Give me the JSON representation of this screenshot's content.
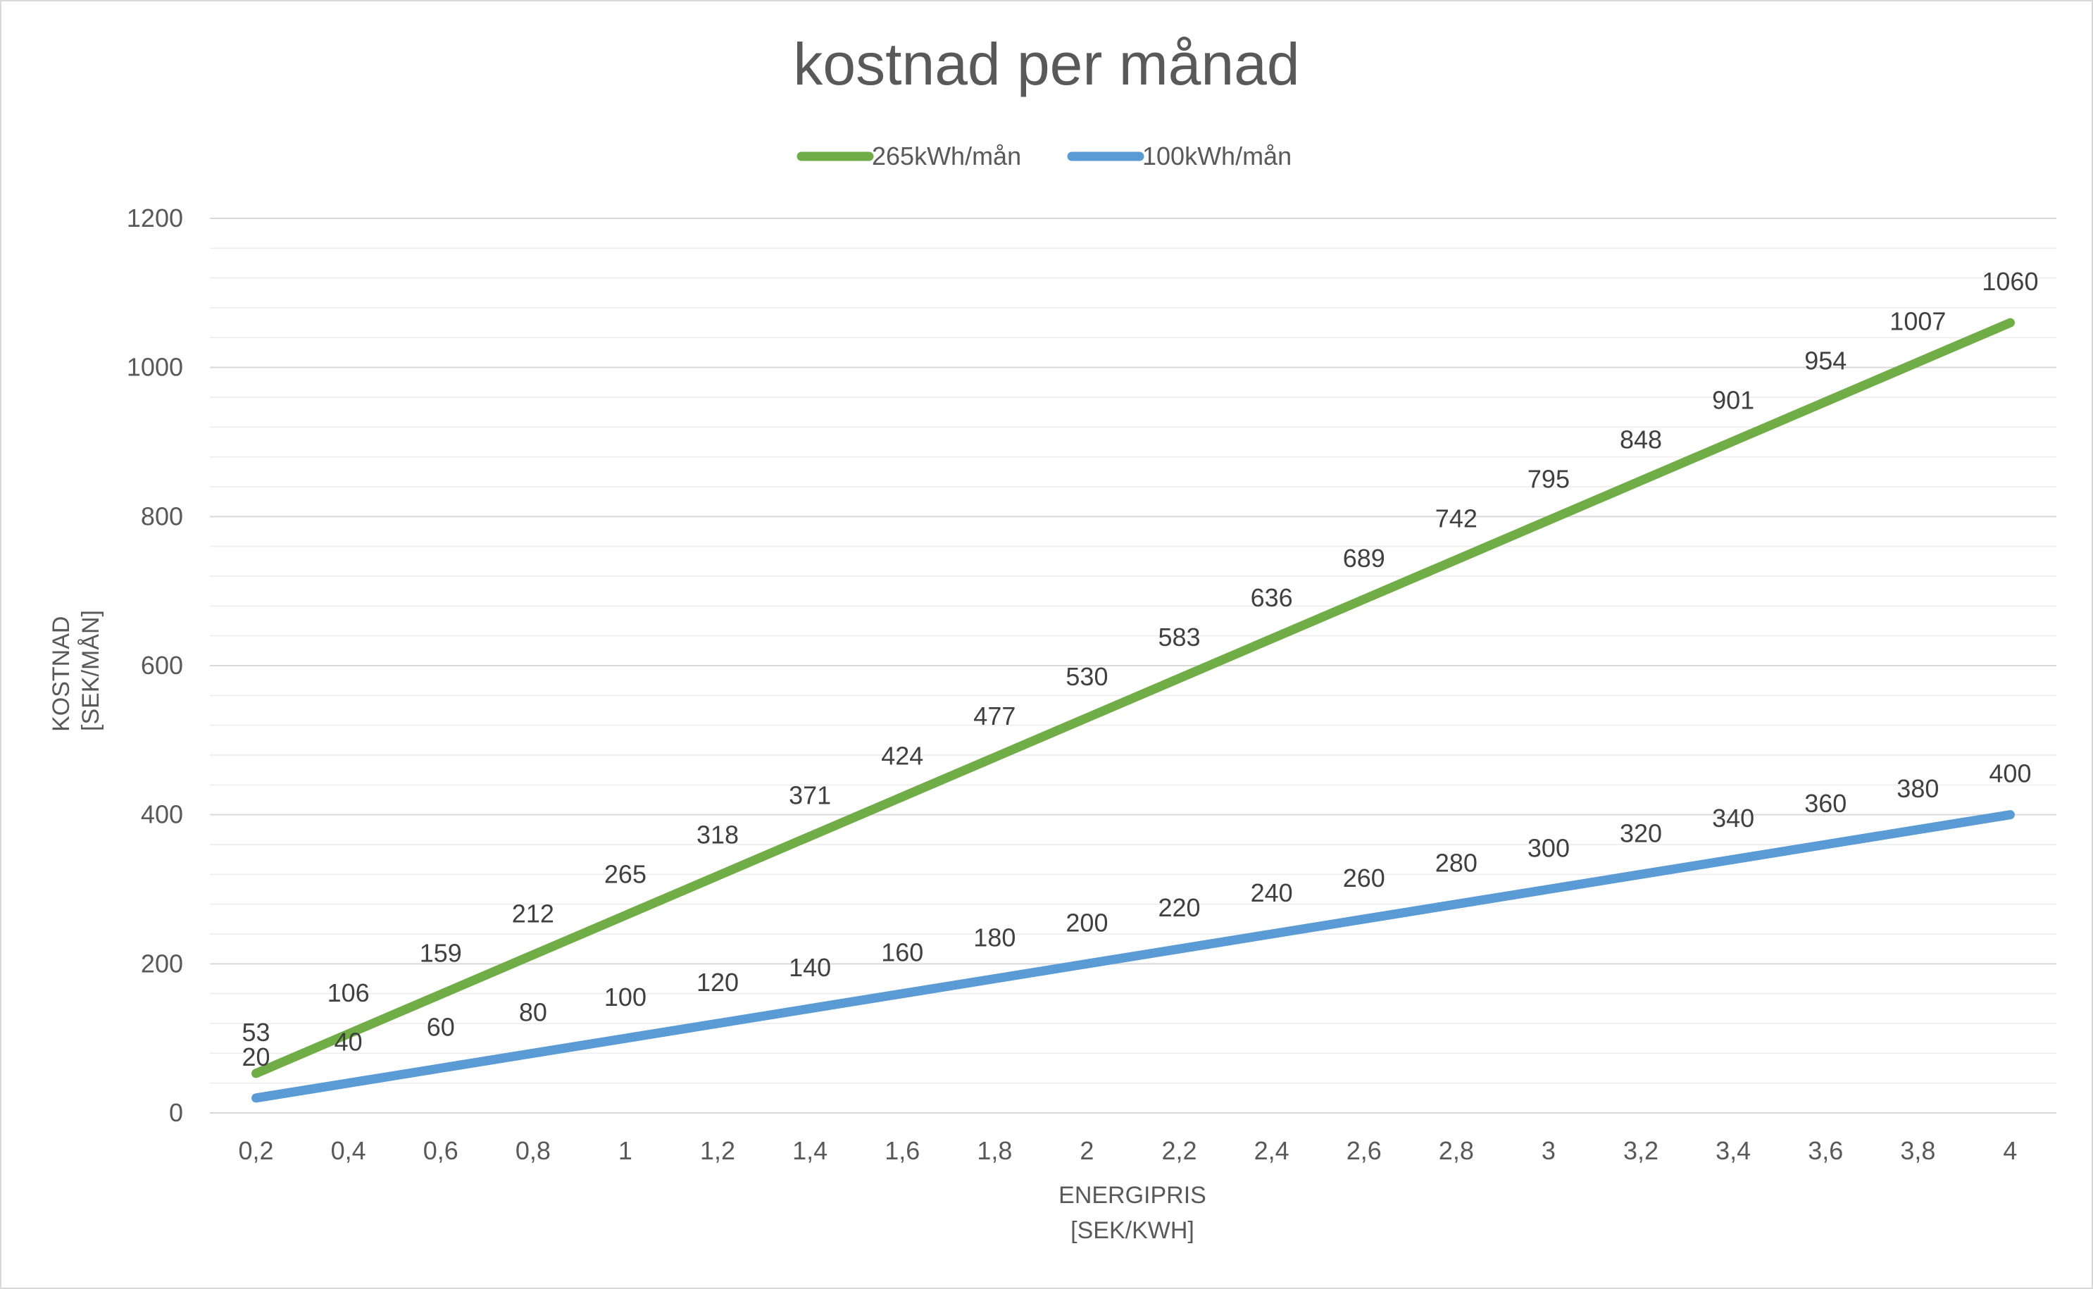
{
  "chart_data": {
    "type": "line",
    "title": "kostnad per månad",
    "xlabel": [
      "ENERGIPRIS",
      "[SEK/KWH]"
    ],
    "ylabel": [
      "KOSTNAD",
      "[SEK/MÅN]"
    ],
    "categories": [
      "0,2",
      "0,4",
      "0,6",
      "0,8",
      "1",
      "1,2",
      "1,4",
      "1,6",
      "1,8",
      "2",
      "2,2",
      "2,4",
      "2,6",
      "2,8",
      "3",
      "3,2",
      "3,4",
      "3,6",
      "3,8",
      "4"
    ],
    "y_ticks": [
      0,
      200,
      400,
      600,
      800,
      1000,
      1200
    ],
    "ylim": [
      0,
      1200
    ],
    "minor_gridlines_step": 40,
    "legend_position": "top",
    "series": [
      {
        "name": "265kWh/mån",
        "color": "#70ad47",
        "values": [
          53,
          106,
          159,
          212,
          265,
          318,
          371,
          424,
          477,
          530,
          583,
          636,
          689,
          742,
          795,
          848,
          901,
          954,
          1007,
          1060
        ]
      },
      {
        "name": "100kWh/mån",
        "color": "#5b9bd5",
        "values": [
          20,
          40,
          60,
          80,
          100,
          120,
          140,
          160,
          180,
          200,
          220,
          240,
          260,
          280,
          300,
          320,
          340,
          360,
          380,
          400
        ]
      }
    ]
  }
}
